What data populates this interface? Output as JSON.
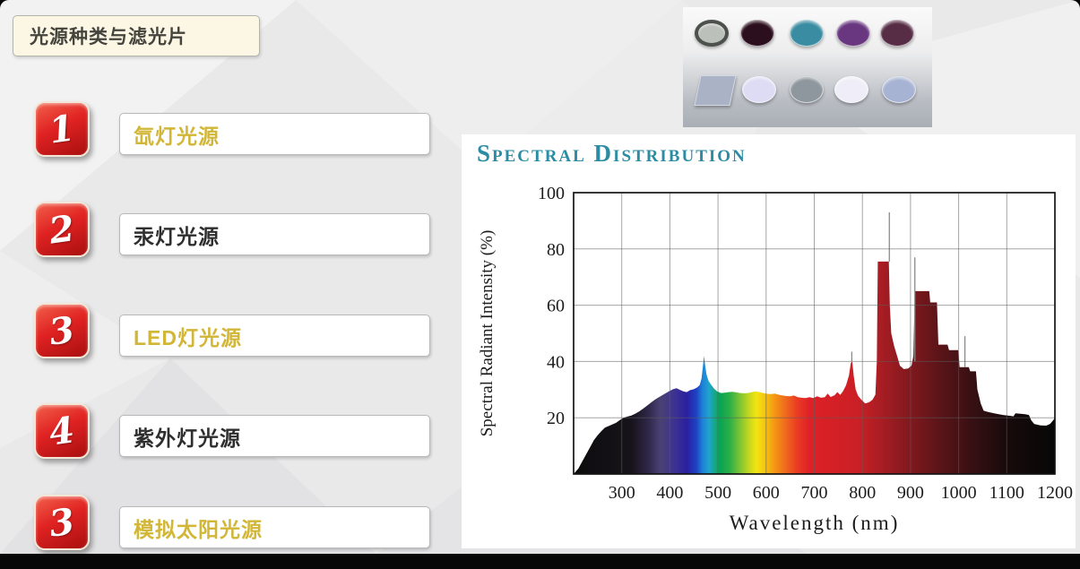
{
  "slide": {
    "title": "光源种类与滤光片",
    "accent_red": "#c81414",
    "gold": "#d2b637",
    "items": [
      {
        "num": "1",
        "label": "氙灯光源",
        "label_color": "gold"
      },
      {
        "num": "2",
        "label": "汞灯光源",
        "label_color": "dark"
      },
      {
        "num": "3",
        "label": "LED灯光源",
        "label_color": "gold"
      },
      {
        "num": "4",
        "label": "紫外灯光源",
        "label_color": "dark"
      },
      {
        "num": "3",
        "label": "模拟太阳光源",
        "label_color": "gold"
      }
    ]
  },
  "filters_image": {
    "top_row": [
      {
        "name": "gray-lens-with-ring",
        "fill": "#bcc0bb",
        "ring": "#4d514d"
      },
      {
        "name": "dark-maroon-filter",
        "fill": "#2c0f1f"
      },
      {
        "name": "teal-filter",
        "fill": "#3a8ca2"
      },
      {
        "name": "purple-filter",
        "fill": "#693680"
      },
      {
        "name": "plum-filter",
        "fill": "#572c45"
      }
    ],
    "bottom_row": [
      {
        "name": "square-gray-filter",
        "fill": "#aab3c5",
        "shape": "square"
      },
      {
        "name": "pale-lavender-filter",
        "fill": "#dddcf4"
      },
      {
        "name": "gray-filter",
        "fill": "#8e979e"
      },
      {
        "name": "white-filter",
        "fill": "#efedf7"
      },
      {
        "name": "periwinkle-filter",
        "fill": "#a7b3d3"
      }
    ]
  },
  "chart_data": {
    "type": "area",
    "title": "Spectral Distribution",
    "title_color": "#2b8ca3",
    "xlabel": "Wavelength (nm)",
    "ylabel": "Spectral Radiant Intensity (%)",
    "xlim": [
      200,
      1200
    ],
    "ylim": [
      0,
      100
    ],
    "x_ticks": [
      300,
      400,
      500,
      600,
      700,
      800,
      900,
      1000,
      1100,
      1200
    ],
    "y_ticks": [
      20,
      40,
      60,
      80,
      100
    ],
    "grid": true,
    "legend": "none",
    "series_points": [
      [
        200,
        0
      ],
      [
        210,
        2
      ],
      [
        218,
        4.5
      ],
      [
        226,
        7
      ],
      [
        234,
        9.5
      ],
      [
        242,
        12
      ],
      [
        250,
        13.8
      ],
      [
        258,
        15.3
      ],
      [
        265,
        16.5
      ],
      [
        272,
        17
      ],
      [
        280,
        17.6
      ],
      [
        288,
        18.2
      ],
      [
        296,
        19.2
      ],
      [
        304,
        20
      ],
      [
        312,
        20.4
      ],
      [
        320,
        20.8
      ],
      [
        328,
        21.4
      ],
      [
        336,
        22.2
      ],
      [
        344,
        23.2
      ],
      [
        352,
        24.2
      ],
      [
        360,
        25.3
      ],
      [
        368,
        26.3
      ],
      [
        376,
        27.2
      ],
      [
        384,
        28
      ],
      [
        392,
        28.8
      ],
      [
        400,
        29.6
      ],
      [
        407,
        30.2
      ],
      [
        414,
        30.5
      ],
      [
        421,
        29.9
      ],
      [
        428,
        29.4
      ],
      [
        435,
        29.1
      ],
      [
        442,
        29.8
      ],
      [
        449,
        30.1
      ],
      [
        456,
        30.7
      ],
      [
        462,
        31.6
      ],
      [
        466,
        34
      ],
      [
        469,
        39
      ],
      [
        471,
        42
      ],
      [
        473,
        39
      ],
      [
        476,
        35.5
      ],
      [
        480,
        33.2
      ],
      [
        485,
        31.9
      ],
      [
        491,
        30.5
      ],
      [
        498,
        29.4
      ],
      [
        506,
        28.8
      ],
      [
        514,
        28.9
      ],
      [
        522,
        29.1
      ],
      [
        530,
        29.2
      ],
      [
        538,
        29
      ],
      [
        546,
        28.8
      ],
      [
        554,
        28.7
      ],
      [
        562,
        28.8
      ],
      [
        570,
        29.1
      ],
      [
        578,
        29.4
      ],
      [
        586,
        29.1
      ],
      [
        594,
        28.8
      ],
      [
        602,
        28.5
      ],
      [
        610,
        28.4
      ],
      [
        618,
        28.6
      ],
      [
        626,
        28.2
      ],
      [
        634,
        27.9
      ],
      [
        642,
        27.7
      ],
      [
        650,
        27.6
      ],
      [
        658,
        27.9
      ],
      [
        666,
        27.3
      ],
      [
        674,
        27.1
      ],
      [
        682,
        27
      ],
      [
        690,
        27.3
      ],
      [
        698,
        27
      ],
      [
        706,
        27.6
      ],
      [
        714,
        27.1
      ],
      [
        722,
        27.3
      ],
      [
        728,
        28.6
      ],
      [
        734,
        27.4
      ],
      [
        742,
        28
      ],
      [
        748,
        29.1
      ],
      [
        754,
        28.1
      ],
      [
        760,
        29.5
      ],
      [
        766,
        31.5
      ],
      [
        772,
        35
      ],
      [
        776,
        39.5
      ],
      [
        779,
        40
      ],
      [
        782,
        35
      ],
      [
        786,
        30
      ],
      [
        791,
        27.8
      ],
      [
        798,
        26.4
      ],
      [
        806,
        25.1
      ],
      [
        814,
        25.5
      ],
      [
        821,
        26.4
      ],
      [
        827,
        28.2
      ],
      [
        830,
        40
      ],
      [
        832,
        75.5
      ],
      [
        855,
        75.5
      ],
      [
        857,
        60
      ],
      [
        860,
        50
      ],
      [
        866,
        45.5
      ],
      [
        872,
        42
      ],
      [
        878,
        38.5
      ],
      [
        886,
        37.3
      ],
      [
        895,
        37.5
      ],
      [
        902,
        38.5
      ],
      [
        906,
        42
      ],
      [
        909,
        65
      ],
      [
        939,
        65
      ],
      [
        941,
        61
      ],
      [
        955,
        61
      ],
      [
        958,
        46
      ],
      [
        977,
        46
      ],
      [
        980,
        44
      ],
      [
        999,
        44
      ],
      [
        1002,
        38
      ],
      [
        1021,
        38
      ],
      [
        1024,
        36.5
      ],
      [
        1036,
        36.5
      ],
      [
        1039,
        30
      ],
      [
        1046,
        25
      ],
      [
        1052,
        22.5
      ],
      [
        1062,
        22
      ],
      [
        1076,
        21.5
      ],
      [
        1092,
        21
      ],
      [
        1106,
        20.7
      ],
      [
        1114,
        20.5
      ],
      [
        1118,
        21.6
      ],
      [
        1136,
        21.3
      ],
      [
        1146,
        21
      ],
      [
        1151,
        19
      ],
      [
        1157,
        17.8
      ],
      [
        1170,
        17.3
      ],
      [
        1182,
        17.2
      ],
      [
        1190,
        17.8
      ],
      [
        1196,
        19
      ],
      [
        1200,
        19.9
      ]
    ],
    "emission_lines": [
      {
        "x": 778,
        "from": 40,
        "to": 43.5
      },
      {
        "x": 856,
        "from": 75.5,
        "to": 93
      },
      {
        "x": 909,
        "from": 40,
        "to": 77
      },
      {
        "x": 1013,
        "from": 38,
        "to": 49
      }
    ],
    "spectrum_gradient_stops": [
      [
        0,
        "#0c0c0c"
      ],
      [
        0.12,
        "#17131b"
      ],
      [
        0.155,
        "#2e2748"
      ],
      [
        0.18,
        "#4a4173"
      ],
      [
        0.21,
        "#3d3292"
      ],
      [
        0.235,
        "#2b1fa0"
      ],
      [
        0.255,
        "#1e42c4"
      ],
      [
        0.268,
        "#1e82d8"
      ],
      [
        0.282,
        "#1fa5cd"
      ],
      [
        0.295,
        "#13a77b"
      ],
      [
        0.305,
        "#0aa452"
      ],
      [
        0.325,
        "#2eb047"
      ],
      [
        0.345,
        "#7cc335"
      ],
      [
        0.365,
        "#c6d81d"
      ],
      [
        0.38,
        "#f2e512"
      ],
      [
        0.397,
        "#f5c610"
      ],
      [
        0.415,
        "#f49c13"
      ],
      [
        0.44,
        "#f06a1d"
      ],
      [
        0.465,
        "#ea3b23"
      ],
      [
        0.49,
        "#de2127"
      ],
      [
        0.53,
        "#d52026"
      ],
      [
        0.59,
        "#ca2026"
      ],
      [
        0.64,
        "#a71d23"
      ],
      [
        0.7,
        "#7f191e"
      ],
      [
        0.76,
        "#5b1418"
      ],
      [
        0.83,
        "#361013"
      ],
      [
        0.9,
        "#170a0b"
      ],
      [
        1,
        "#070707"
      ]
    ]
  }
}
